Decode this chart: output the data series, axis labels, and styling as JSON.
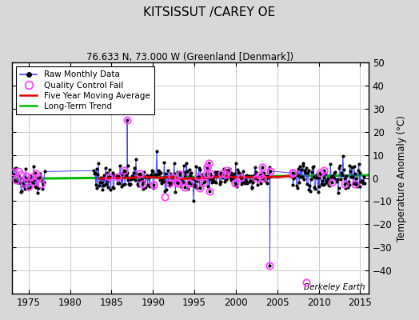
{
  "title": "KITSISSUT /CAREY OE",
  "subtitle": "76.633 N, 73.000 W (Greenland [Denmark])",
  "ylabel": "Temperature Anomaly (°C)",
  "watermark": "Berkeley Earth",
  "xlim": [
    1973,
    2016
  ],
  "ylim": [
    -50,
    50
  ],
  "yticks": [
    -40,
    -30,
    -20,
    -10,
    0,
    10,
    20,
    30,
    40,
    50
  ],
  "xticks": [
    1975,
    1980,
    1985,
    1990,
    1995,
    2000,
    2005,
    2010,
    2015
  ],
  "fig_color": "#d8d8d8",
  "plot_bg": "#ffffff",
  "grid_color": "#cccccc",
  "raw_color": "#4444ff",
  "raw_marker_color": "#000000",
  "qc_color": "#ff44ff",
  "moving_avg_color": "#dd0000",
  "trend_color": "#00bb00",
  "seed": 42
}
